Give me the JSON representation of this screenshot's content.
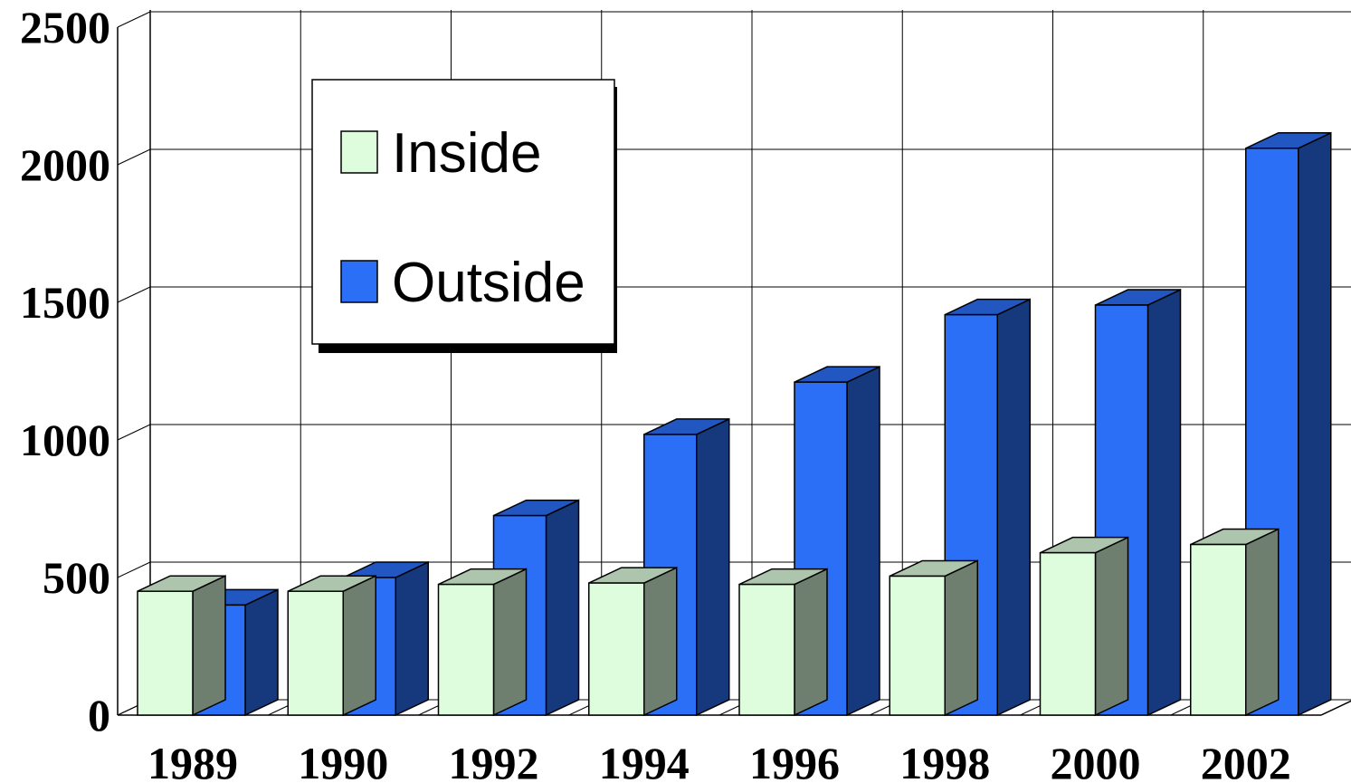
{
  "chart_data": {
    "type": "bar3d",
    "categories": [
      "1989",
      "1990",
      "1992",
      "1994",
      "1996",
      "1998",
      "2000",
      "2002"
    ],
    "series": [
      {
        "name": "Inside",
        "color": "#ddfddd",
        "values": [
          450,
          450,
          475,
          480,
          475,
          505,
          590,
          620
        ]
      },
      {
        "name": "Outside",
        "color": "#2b6ff7",
        "values": [
          400,
          500,
          725,
          1020,
          1210,
          1455,
          1490,
          2060
        ]
      }
    ],
    "ylim": [
      0,
      2500
    ],
    "yticks": [
      0,
      500,
      1000,
      1500,
      2000,
      2500
    ],
    "grid": true
  }
}
